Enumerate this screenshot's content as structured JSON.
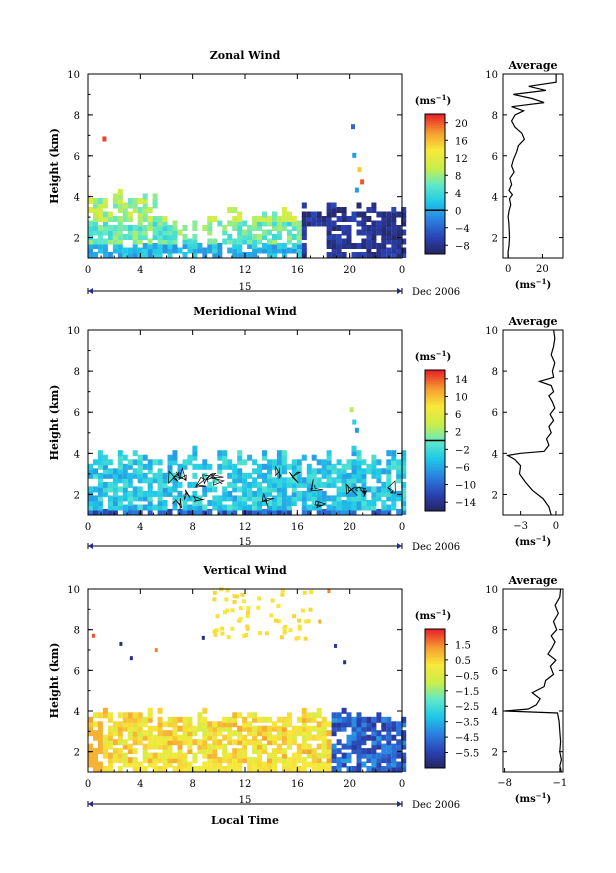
{
  "chart_data": [
    {
      "type": "heatmap",
      "title": "Zonal Wind",
      "ylabel": "Height (km)",
      "xlim": [
        0,
        24
      ],
      "ylim": [
        1,
        10
      ],
      "x_ticks": [
        "0",
        "4",
        "8",
        "12",
        "16",
        "20",
        "0"
      ],
      "y_ticks": [
        "2",
        "4",
        "6",
        "8",
        "10"
      ],
      "date_label": "15",
      "date_suffix": "Dec 2006",
      "colorbar": {
        "unit": "(ms",
        "unit_exp": "−1",
        "ticks": [
          "20",
          "16",
          "12",
          "8",
          "4",
          "0",
          "−4",
          "−8"
        ],
        "range": [
          -10,
          22
        ],
        "zero_line": 0
      },
      "average": {
        "title": "Average",
        "xlabel": "(ms",
        "xlabel_exp": "−1",
        "x_ticks": [
          "0",
          "20"
        ],
        "xlim": [
          -3,
          32
        ],
        "y_ticks": [
          "2",
          "4",
          "6",
          "8",
          "10"
        ],
        "profile": [
          [
            1.0,
            0
          ],
          [
            1.3,
            0
          ],
          [
            1.6,
            0.5
          ],
          [
            2.0,
            0.8
          ],
          [
            2.4,
            0.6
          ],
          [
            2.8,
            0.3
          ],
          [
            3.0,
            0
          ],
          [
            3.3,
            0.5
          ],
          [
            3.6,
            1.5
          ],
          [
            3.9,
            0.8
          ],
          [
            4.1,
            2.5
          ],
          [
            4.3,
            0.5
          ],
          [
            4.6,
            2.0
          ],
          [
            4.9,
            1.0
          ],
          [
            5.2,
            3.5
          ],
          [
            5.5,
            2.0
          ],
          [
            5.8,
            3.0
          ],
          [
            6.2,
            5.0
          ],
          [
            6.5,
            6.0
          ],
          [
            6.8,
            9.5
          ],
          [
            7.1,
            8.0
          ],
          [
            7.4,
            4.0
          ],
          [
            7.7,
            2.0
          ],
          [
            8.0,
            4.0
          ],
          [
            8.2,
            9.0
          ],
          [
            8.4,
            2.0
          ],
          [
            8.6,
            21.0
          ],
          [
            8.8,
            14.0
          ],
          [
            9.0,
            3.0
          ],
          [
            9.2,
            22.0
          ],
          [
            9.4,
            12.0
          ],
          [
            9.6,
            28.0
          ],
          [
            10.0,
            28.0
          ]
        ]
      }
    },
    {
      "type": "heatmap",
      "title": "Meridional Wind",
      "ylabel": "Height (km)",
      "xlim": [
        0,
        24
      ],
      "ylim": [
        1,
        10
      ],
      "x_ticks": [
        "0",
        "4",
        "8",
        "12",
        "16",
        "20",
        "0"
      ],
      "y_ticks": [
        "2",
        "4",
        "6",
        "8",
        "10"
      ],
      "date_label": "15",
      "date_suffix": "Dec 2006",
      "colorbar": {
        "unit": "(ms",
        "unit_exp": "−1",
        "ticks": [
          "14",
          "10",
          "6",
          "2",
          "−2",
          "−6",
          "−10",
          "−14"
        ],
        "range": [
          -16,
          16
        ],
        "zero_line": 0
      },
      "average": {
        "title": "Average",
        "xlabel": "(ms",
        "xlabel_exp": "−1",
        "x_ticks": [
          "−3",
          "0"
        ],
        "xlim": [
          -4.5,
          0.6
        ],
        "y_ticks": [
          "2",
          "4",
          "6",
          "8",
          "10"
        ],
        "profile": [
          [
            1.0,
            -0.4
          ],
          [
            1.4,
            -0.6
          ],
          [
            1.8,
            -1.1
          ],
          [
            2.2,
            -2.0
          ],
          [
            2.6,
            -2.6
          ],
          [
            3.0,
            -3.1
          ],
          [
            3.4,
            -3.0
          ],
          [
            3.7,
            -3.5
          ],
          [
            3.9,
            -4.1
          ],
          [
            4.0,
            -3.0
          ],
          [
            4.1,
            -1.0
          ],
          [
            4.4,
            -0.6
          ],
          [
            4.7,
            -0.8
          ],
          [
            5.0,
            -0.4
          ],
          [
            5.3,
            -0.6
          ],
          [
            5.6,
            -0.2
          ],
          [
            5.9,
            -0.5
          ],
          [
            6.2,
            -0.1
          ],
          [
            6.5,
            -0.3
          ],
          [
            6.8,
            -0.6
          ],
          [
            7.0,
            -0.2
          ],
          [
            7.3,
            -0.4
          ],
          [
            7.5,
            -1.4
          ],
          [
            7.7,
            -0.2
          ],
          [
            8.0,
            -0.3
          ],
          [
            8.4,
            -0.1
          ],
          [
            8.8,
            -0.4
          ],
          [
            9.2,
            -0.2
          ],
          [
            9.6,
            -0.1
          ],
          [
            10.0,
            -0.2
          ]
        ]
      }
    },
    {
      "type": "heatmap",
      "title": "Vertical Wind",
      "xlabel": "Local Time",
      "ylabel": "Height (km)",
      "xlim": [
        0,
        24
      ],
      "ylim": [
        1,
        10
      ],
      "x_ticks": [
        "0",
        "4",
        "8",
        "12",
        "16",
        "20",
        "0"
      ],
      "y_ticks": [
        "2",
        "4",
        "6",
        "8",
        "10"
      ],
      "date_label": "15",
      "date_suffix": "Dec 2006",
      "colorbar": {
        "unit": "(ms",
        "unit_exp": "−1",
        "ticks": [
          "1.5",
          "0.5",
          "−0.5",
          "−1.5",
          "−2.5",
          "−3.5",
          "−4.5",
          "−5.5"
        ],
        "range": [
          -6.5,
          2.5
        ]
      },
      "average": {
        "title": "Average",
        "xlabel": "(ms",
        "xlabel_exp": "−1",
        "x_ticks": [
          "−8",
          "−1"
        ],
        "xlim": [
          -8.2,
          -0.6
        ],
        "y_ticks": [
          "2",
          "4",
          "6",
          "8",
          "10"
        ],
        "profile": [
          [
            1.0,
            -0.8
          ],
          [
            1.3,
            -1.0
          ],
          [
            1.6,
            -0.8
          ],
          [
            2.0,
            -1.0
          ],
          [
            2.5,
            -0.9
          ],
          [
            3.0,
            -1.0
          ],
          [
            3.5,
            -1.1
          ],
          [
            3.9,
            -1.3
          ],
          [
            4.0,
            -8.0
          ],
          [
            4.1,
            -5.0
          ],
          [
            4.3,
            -4.0
          ],
          [
            4.6,
            -3.5
          ],
          [
            4.9,
            -4.5
          ],
          [
            5.2,
            -3.0
          ],
          [
            5.5,
            -2.8
          ],
          [
            5.8,
            -1.8
          ],
          [
            6.2,
            -2.2
          ],
          [
            6.5,
            -1.5
          ],
          [
            6.8,
            -2.5
          ],
          [
            7.1,
            -2.0
          ],
          [
            7.4,
            -1.6
          ],
          [
            7.7,
            -2.1
          ],
          [
            8.0,
            -1.4
          ],
          [
            8.4,
            -1.8
          ],
          [
            8.8,
            -1.2
          ],
          [
            9.2,
            -1.6
          ],
          [
            9.6,
            -1.0
          ],
          [
            10.0,
            -0.9
          ]
        ]
      }
    }
  ]
}
